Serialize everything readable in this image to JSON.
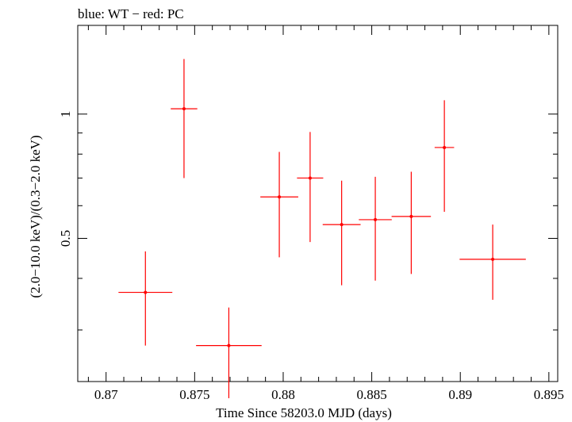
{
  "chart_data": {
    "type": "scatter",
    "title": "blue: WT − red: PC",
    "xlabel": "Time Since 58203.0 MJD (days)",
    "ylabel": "(2.0−10.0 keV)/(0.3−2.0 keV)",
    "xlim": [
      0.8684,
      0.8955
    ],
    "ylim": [
      0.225,
      1.64
    ],
    "yscale": "log",
    "x_ticks": [
      0.87,
      0.875,
      0.88,
      0.885,
      0.89,
      0.895
    ],
    "x_tick_labels": [
      "0.87",
      "0.875",
      "0.88",
      "0.885",
      "0.89",
      "0.895"
    ],
    "y_ticks": [
      0.5,
      1
    ],
    "y_tick_labels": [
      "0.5",
      "1"
    ],
    "grid": false,
    "colors": {
      "series": "#ff0000",
      "axes": "#000000"
    },
    "series": [
      {
        "color": "#ff0000",
        "points": [
          {
            "x": 0.87222,
            "xerr": 0.00152,
            "y": 0.37,
            "ylo": 0.275,
            "yhi": 0.465
          },
          {
            "x": 0.8744,
            "xerr": 0.00075,
            "y": 1.03,
            "ylo": 0.7,
            "yhi": 1.36
          },
          {
            "x": 0.87693,
            "xerr": 0.00185,
            "y": 0.275,
            "ylo": 0.205,
            "yhi": 0.34
          },
          {
            "x": 0.87978,
            "xerr": 0.00107,
            "y": 0.63,
            "ylo": 0.45,
            "yhi": 0.81
          },
          {
            "x": 0.88152,
            "xerr": 0.00074,
            "y": 0.7,
            "ylo": 0.49,
            "yhi": 0.905
          },
          {
            "x": 0.8833,
            "xerr": 0.00107,
            "y": 0.54,
            "ylo": 0.385,
            "yhi": 0.69
          },
          {
            "x": 0.8852,
            "xerr": 0.00093,
            "y": 0.555,
            "ylo": 0.395,
            "yhi": 0.705
          },
          {
            "x": 0.88723,
            "xerr": 0.00111,
            "y": 0.565,
            "ylo": 0.41,
            "yhi": 0.725
          },
          {
            "x": 0.8891,
            "xerr": 0.00055,
            "y": 0.83,
            "ylo": 0.58,
            "yhi": 1.08
          },
          {
            "x": 0.89183,
            "xerr": 0.00187,
            "y": 0.445,
            "ylo": 0.355,
            "yhi": 0.54
          }
        ]
      }
    ]
  }
}
